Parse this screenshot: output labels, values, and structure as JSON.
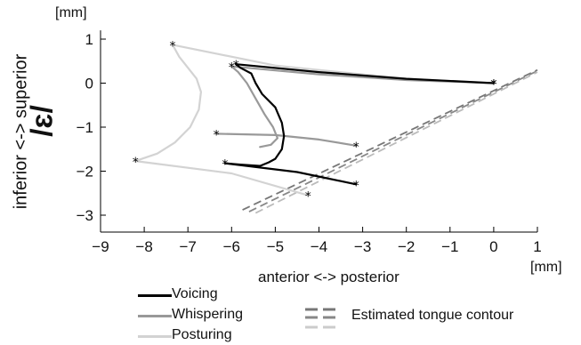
{
  "chart_data": {
    "type": "line",
    "vowel": "/ɛ/",
    "xlabel": "anterior <-> posterior",
    "ylabel": "inferior <-> superior",
    "xunit": "[mm]",
    "yunit": "[mm]",
    "xlim": [
      -9,
      1
    ],
    "ylim": [
      -3.2,
      1.2
    ],
    "xticks": [
      -9,
      -8,
      -7,
      -6,
      -5,
      -4,
      -3,
      -2,
      -1,
      0,
      1
    ],
    "yticks": [
      1,
      0,
      -1,
      -2,
      -3
    ],
    "grid": false,
    "legend_position": "bottom-left",
    "series": [
      {
        "name": "Voicing",
        "color": "#000000",
        "upper_path": [
          [
            -5.9,
            0.43
          ],
          [
            -4.0,
            0.25
          ],
          [
            -2.0,
            0.1
          ],
          [
            0.0,
            0.0
          ]
        ],
        "tongue_body": [
          [
            -5.9,
            0.43
          ],
          [
            -5.8,
            0.35
          ],
          [
            -5.55,
            0.22
          ],
          [
            -5.45,
            0.0
          ],
          [
            -5.3,
            -0.25
          ],
          [
            -5.0,
            -0.55
          ],
          [
            -4.85,
            -0.9
          ],
          [
            -4.8,
            -1.2
          ],
          [
            -4.85,
            -1.5
          ],
          [
            -5.0,
            -1.72
          ],
          [
            -5.15,
            -1.8
          ],
          [
            -5.35,
            -1.88
          ],
          [
            -5.8,
            -1.85
          ],
          [
            -6.15,
            -1.82
          ]
        ],
        "lower_path": [
          [
            -6.15,
            -1.82
          ],
          [
            -4.5,
            -2.02
          ],
          [
            -3.15,
            -2.3
          ]
        ],
        "markers": [
          [
            -5.9,
            0.43
          ],
          [
            0.0,
            0.0
          ],
          [
            -6.15,
            -1.82
          ],
          [
            -3.15,
            -2.3
          ]
        ]
      },
      {
        "name": "Whispering",
        "color": "#999999",
        "upper_path": [
          [
            -6.0,
            0.38
          ],
          [
            -4.0,
            0.2
          ],
          [
            -2.0,
            0.07
          ],
          [
            0.0,
            0.0
          ]
        ],
        "tongue_body": [
          [
            -6.0,
            0.38
          ],
          [
            -5.85,
            0.25
          ],
          [
            -5.65,
            0.0
          ],
          [
            -5.45,
            -0.35
          ],
          [
            -5.25,
            -0.7
          ],
          [
            -5.05,
            -1.0
          ],
          [
            -4.95,
            -1.25
          ],
          [
            -5.1,
            -1.4
          ],
          [
            -5.35,
            -1.45
          ]
        ],
        "lower_path": [
          [
            -6.35,
            -1.15
          ],
          [
            -5.0,
            -1.18
          ],
          [
            -4.0,
            -1.28
          ],
          [
            -3.15,
            -1.42
          ]
        ],
        "markers": [
          [
            -6.0,
            0.38
          ],
          [
            0.0,
            0.0
          ],
          [
            -6.35,
            -1.15
          ],
          [
            -3.15,
            -1.42
          ]
        ]
      },
      {
        "name": "Posturing",
        "color": "#d3d3d3",
        "upper_path": [
          [
            -7.35,
            0.87
          ],
          [
            -5.0,
            0.4
          ],
          [
            -2.0,
            0.1
          ],
          [
            0.0,
            0.0
          ]
        ],
        "tongue_body": [
          [
            -7.35,
            0.87
          ],
          [
            -7.2,
            0.6
          ],
          [
            -7.0,
            0.35
          ],
          [
            -6.8,
            0.1
          ],
          [
            -6.7,
            -0.2
          ],
          [
            -6.75,
            -0.6
          ],
          [
            -6.95,
            -1.0
          ],
          [
            -7.3,
            -1.35
          ],
          [
            -7.7,
            -1.6
          ],
          [
            -8.2,
            -1.77
          ]
        ],
        "lower_path": [
          [
            -8.2,
            -1.77
          ],
          [
            -6.0,
            -2.05
          ],
          [
            -4.25,
            -2.55
          ]
        ],
        "markers": [
          [
            -7.35,
            0.87
          ],
          [
            0.0,
            0.0
          ],
          [
            -8.2,
            -1.77
          ],
          [
            -4.25,
            -2.55
          ]
        ]
      }
    ],
    "tongue_contour": {
      "name": "Estimated tongue contour",
      "style": "dashed",
      "lines": [
        {
          "color": "#777777",
          "points": [
            [
              -5.75,
              -2.88
            ],
            [
              1.0,
              0.3
            ]
          ]
        },
        {
          "color": "#888888",
          "points": [
            [
              -5.6,
              -2.92
            ],
            [
              1.0,
              0.28
            ]
          ]
        },
        {
          "color": "#bbbbbb",
          "points": [
            [
              -5.45,
              -2.95
            ],
            [
              1.0,
              0.25
            ]
          ]
        }
      ]
    }
  },
  "legend": {
    "voicing": "Voicing",
    "whispering": "Whispering",
    "posturing": "Posturing",
    "contour": "Estimated tongue contour"
  }
}
